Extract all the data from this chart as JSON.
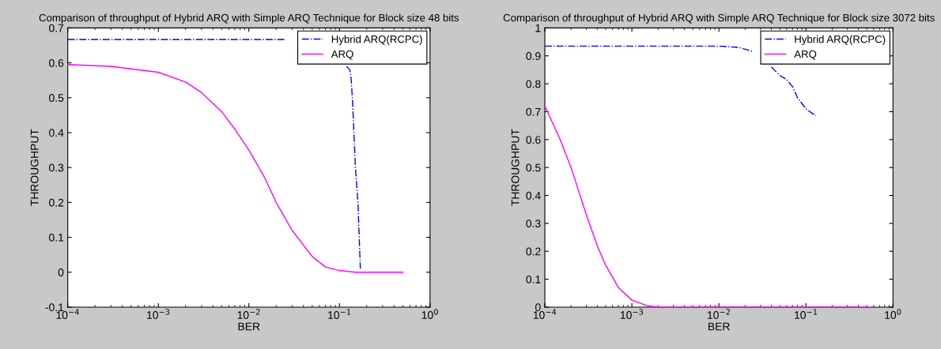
{
  "chart_data": [
    {
      "type": "line",
      "title": "Comparison of throughput of Hybrid ARQ with Simple ARQ Technique for Block size 48 bits",
      "xlabel": "BER",
      "ylabel": "THROUGHPUT",
      "log": "x",
      "grid": false,
      "legend": "top right",
      "xlim": [
        0.0001,
        1
      ],
      "xticks": [
        {
          "value": 0.0001,
          "label": "10$^{−4}$"
        },
        {
          "value": 0.001,
          "label": "10$^{−3}$"
        },
        {
          "value": 0.01,
          "label": "10$^{−2}$"
        },
        {
          "value": 0.1,
          "label": "10$^{−1}$"
        },
        {
          "value": 1,
          "label": "10$^{0}$"
        }
      ],
      "ylim": [
        -0.1,
        0.7
      ],
      "yticks": [
        -0.1,
        0,
        0.1,
        0.2,
        0.3,
        0.4,
        0.5,
        0.6,
        0.7
      ],
      "series": [
        {
          "name": "Hybrid ARQ(RCPC)",
          "color": "#0000ff",
          "line_style": "dashdot",
          "x": [
            0.0001,
            0.001,
            0.01,
            0.025,
            0.05,
            0.12,
            0.13,
            0.135,
            0.14,
            0.15,
            0.16,
            0.17
          ],
          "values": [
            0.667,
            0.667,
            0.667,
            0.667,
            null,
            0.59,
            0.58,
            0.55,
            0.48,
            0.3,
            0.2,
            0.01
          ]
        },
        {
          "name": "ARQ",
          "color": "#ff00ff",
          "line_style": "solid",
          "x": [
            0.0001,
            0.0003,
            0.001,
            0.002,
            0.003,
            0.005,
            0.007,
            0.01,
            0.015,
            0.02,
            0.03,
            0.05,
            0.07,
            0.1,
            0.15,
            0.5
          ],
          "values": [
            0.595,
            0.59,
            0.573,
            0.545,
            0.515,
            0.46,
            0.41,
            0.35,
            0.27,
            0.2,
            0.12,
            0.045,
            0.015,
            0.005,
            0.0,
            0.0
          ]
        }
      ]
    },
    {
      "type": "line",
      "title": "Comparison of throughput of Hybrid ARQ with Simple ARQ Technique for Block size 3072 bits",
      "xlabel": "BER",
      "ylabel": "THROUGHPUT",
      "log": "x",
      "grid": false,
      "legend": "top right",
      "xlim": [
        0.0001,
        1
      ],
      "xticks": [
        {
          "value": 0.0001,
          "label": "10$^{−4}$"
        },
        {
          "value": 0.001,
          "label": "10$^{−3}$"
        },
        {
          "value": 0.01,
          "label": "10$^{−2}$"
        },
        {
          "value": 0.1,
          "label": "10$^{−1}$"
        },
        {
          "value": 1,
          "label": "10$^{0}$"
        }
      ],
      "ylim": [
        0,
        1
      ],
      "yticks": [
        0,
        0.1,
        0.2,
        0.3,
        0.4,
        0.5,
        0.6,
        0.7,
        0.8,
        0.9,
        1
      ],
      "series": [
        {
          "name": "Hybrid ARQ(RCPC)",
          "color": "#0000ff",
          "line_style": "dashdot",
          "x": [
            0.0001,
            0.001,
            0.01,
            0.017,
            0.025,
            0.033,
            0.04,
            0.05,
            0.06,
            0.07,
            0.08,
            0.1,
            0.13
          ],
          "values": [
            0.935,
            0.935,
            0.935,
            0.93,
            0.915,
            null,
            0.86,
            0.83,
            0.815,
            0.79,
            0.75,
            0.71,
            0.685
          ]
        },
        {
          "name": "ARQ",
          "color": "#ff00ff",
          "line_style": "solid",
          "x": [
            0.0001,
            0.00015,
            0.0002,
            0.0003,
            0.0004,
            0.0005,
            0.0007,
            0.001,
            0.0015,
            0.002,
            0.5
          ],
          "values": [
            0.72,
            0.6,
            0.5,
            0.33,
            0.22,
            0.15,
            0.07,
            0.025,
            0.005,
            0.0,
            0.0
          ]
        }
      ]
    }
  ]
}
